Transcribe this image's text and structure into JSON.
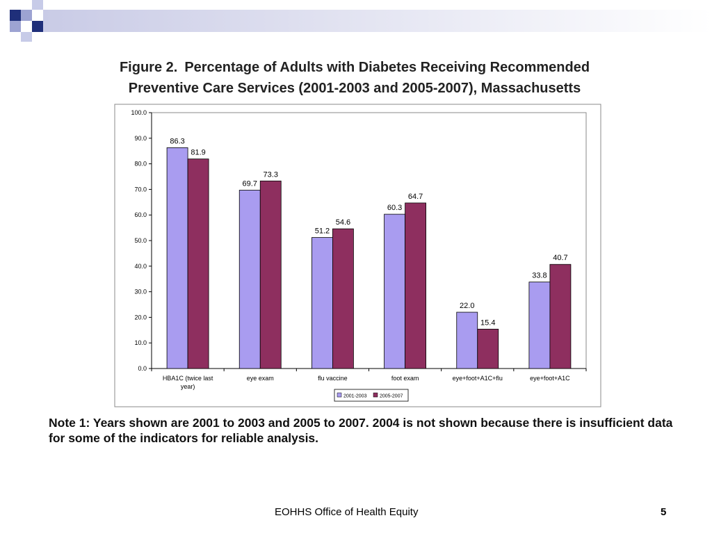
{
  "slide": {
    "figure_label": "Figure 2.",
    "title_line1": "Percentage of Adults with Diabetes Receiving Recommended",
    "title_line2": "Preventive Care Services (2001-2003 and 2005-2007), Massachusetts",
    "note": "Note 1: Years shown are 2001 to 2003 and 2005 to 2007. 2004 is not shown because there is insufficient data for some of the indicators for reliable analysis.",
    "footer": "EOHHS Office of Health Equity",
    "page_number": "5"
  },
  "colors": {
    "series_2001_2003": "#a99cf0",
    "series_2005_2007": "#8e2f5f",
    "deco_navy": "#1f2f7a",
    "deco_lavender": "#9da3d2"
  },
  "chart_data": {
    "type": "bar",
    "title": "",
    "xlabel": "",
    "ylabel": "",
    "ylim": [
      0,
      100
    ],
    "yticks": [
      "0.0",
      "10.0",
      "20.0",
      "30.0",
      "40.0",
      "50.0",
      "60.0",
      "70.0",
      "80.0",
      "90.0",
      "100.0"
    ],
    "categories": [
      [
        "HBA1C (twice last",
        "year)"
      ],
      [
        "eye exam"
      ],
      [
        "flu vaccine"
      ],
      [
        "foot exam"
      ],
      [
        "eye+foot+A1C+flu"
      ],
      [
        "eye+foot+A1C"
      ]
    ],
    "series": [
      {
        "name": "2001-2003",
        "values": [
          86.3,
          69.7,
          51.2,
          60.3,
          22.0,
          33.8
        ],
        "labels": [
          "86.3",
          "69.7",
          "51.2",
          "60.3",
          "22.0",
          "33.8"
        ]
      },
      {
        "name": "2005-2007",
        "values": [
          81.9,
          73.3,
          54.6,
          64.7,
          15.4,
          40.7
        ],
        "labels": [
          "81.9",
          "73.3",
          "54.6",
          "64.7",
          "15.4",
          "40.7"
        ]
      }
    ],
    "grid": false,
    "legend_position": "bottom-center"
  }
}
